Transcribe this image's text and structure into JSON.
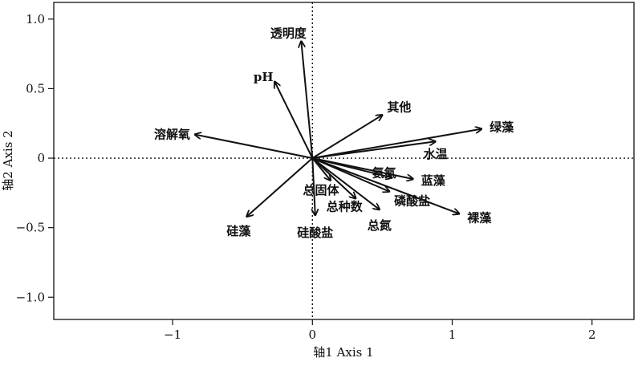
{
  "chart_data": {
    "type": "biplot",
    "xlabel": "轴1 Axis 1",
    "ylabel": "轴2 Axis 2",
    "xlim": [
      -1.85,
      2.3
    ],
    "ylim": [
      -1.16,
      1.12
    ],
    "xticks": [
      -1,
      0,
      1,
      2
    ],
    "yticks": [
      -1.0,
      -0.5,
      0,
      0.5,
      1.0
    ],
    "xtick_labels": [
      "−1",
      "0",
      "1",
      "2"
    ],
    "ytick_labels": [
      "−1.0",
      "−0.5",
      "0",
      "0.5",
      "1.0"
    ],
    "reference_lines": {
      "x": 0,
      "y": 0,
      "style": "dotted"
    },
    "grid": false,
    "vectors": [
      {
        "label": "透明度",
        "x": -0.08,
        "y": 0.84
      },
      {
        "label": "pH",
        "x": -0.27,
        "y": 0.55
      },
      {
        "label": "溶解氧",
        "x": -0.84,
        "y": 0.17
      },
      {
        "label": "其他",
        "x": 0.5,
        "y": 0.31
      },
      {
        "label": "绿藻",
        "x": 1.21,
        "y": 0.21
      },
      {
        "label": "水温",
        "x": 0.88,
        "y": 0.12
      },
      {
        "label": "氨氮",
        "x": 0.57,
        "y": -0.14
      },
      {
        "label": "蓝藻",
        "x": 0.72,
        "y": -0.15
      },
      {
        "label": "总固体",
        "x": 0.13,
        "y": -0.16
      },
      {
        "label": "磷酸盐",
        "x": 0.55,
        "y": -0.24
      },
      {
        "label": "总种数",
        "x": 0.31,
        "y": -0.29
      },
      {
        "label": "总氮",
        "x": 0.48,
        "y": -0.37
      },
      {
        "label": "裸藻",
        "x": 1.05,
        "y": -0.4
      },
      {
        "label": "硅酸盐",
        "x": 0.02,
        "y": -0.41
      },
      {
        "label": "硅藻",
        "x": -0.47,
        "y": -0.42
      }
    ]
  }
}
